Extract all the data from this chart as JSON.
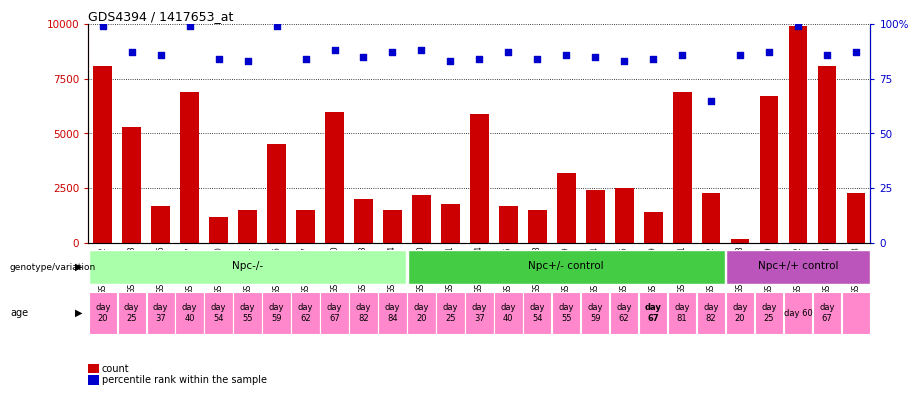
{
  "title": "GDS4394 / 1417653_at",
  "samples": [
    "GSM973242",
    "GSM973243",
    "GSM973246",
    "GSM973247",
    "GSM973250",
    "GSM973251",
    "GSM973256",
    "GSM973257",
    "GSM973260",
    "GSM973263",
    "GSM973264",
    "GSM973240",
    "GSM973241",
    "GSM973244",
    "GSM973245",
    "GSM973248",
    "GSM973249",
    "GSM973254",
    "GSM973255",
    "GSM973259",
    "GSM973261",
    "GSM973262",
    "GSM973238",
    "GSM973239",
    "GSM973252",
    "GSM973253",
    "GSM973258"
  ],
  "counts": [
    8100,
    5300,
    1700,
    6900,
    1200,
    1500,
    4500,
    1500,
    6000,
    2000,
    1500,
    2200,
    1800,
    5900,
    1700,
    1500,
    3200,
    2400,
    2500,
    1400,
    6900,
    2300,
    200,
    6700,
    9900,
    8100,
    2300
  ],
  "percentiles": [
    99,
    87,
    86,
    99,
    84,
    83,
    99,
    84,
    88,
    85,
    87,
    88,
    83,
    84,
    87,
    84,
    86,
    85,
    83,
    84,
    86,
    65,
    86,
    87,
    99,
    86,
    87
  ],
  "groups": [
    {
      "label": "Npc-/-",
      "start": 0,
      "end": 10,
      "color": "#aaffaa"
    },
    {
      "label": "Npc+/- control",
      "start": 11,
      "end": 21,
      "color": "#44cc44"
    },
    {
      "label": "Npc+/+ control",
      "start": 22,
      "end": 26,
      "color": "#bb55bb"
    }
  ],
  "ages": [
    "day\n20",
    "day\n25",
    "day\n37",
    "day\n40",
    "day\n54",
    "day\n55",
    "day\n59",
    "day\n62",
    "day\n67",
    "day\n82",
    "day\n84",
    "day\n20",
    "day\n25",
    "day\n37",
    "day\n40",
    "day\n54",
    "day\n55",
    "day\n59",
    "day\n62",
    "day\n67",
    "day\n81",
    "day\n82",
    "day\n20",
    "day\n25",
    "day 60",
    "day\n67"
  ],
  "age_bold_idx": [
    19
  ],
  "age_merged_idx": [
    24
  ],
  "bar_color": "#cc0000",
  "dot_color": "#0000cc",
  "plot_bg": "#ffffff",
  "tick_area_bg": "#d0d0d0",
  "age_bg": "#ff88cc",
  "ylim": [
    0,
    10000
  ],
  "yticks": [
    0,
    2500,
    5000,
    7500,
    10000
  ],
  "ytick_labels": [
    "0",
    "2500",
    "5000",
    "7500",
    "10000"
  ],
  "y2ticks": [
    0,
    25,
    50,
    75,
    100
  ],
  "y2tick_labels": [
    "0",
    "25",
    "50",
    "75",
    "100%"
  ],
  "grid_vals": [
    2500,
    5000,
    7500,
    10000
  ]
}
